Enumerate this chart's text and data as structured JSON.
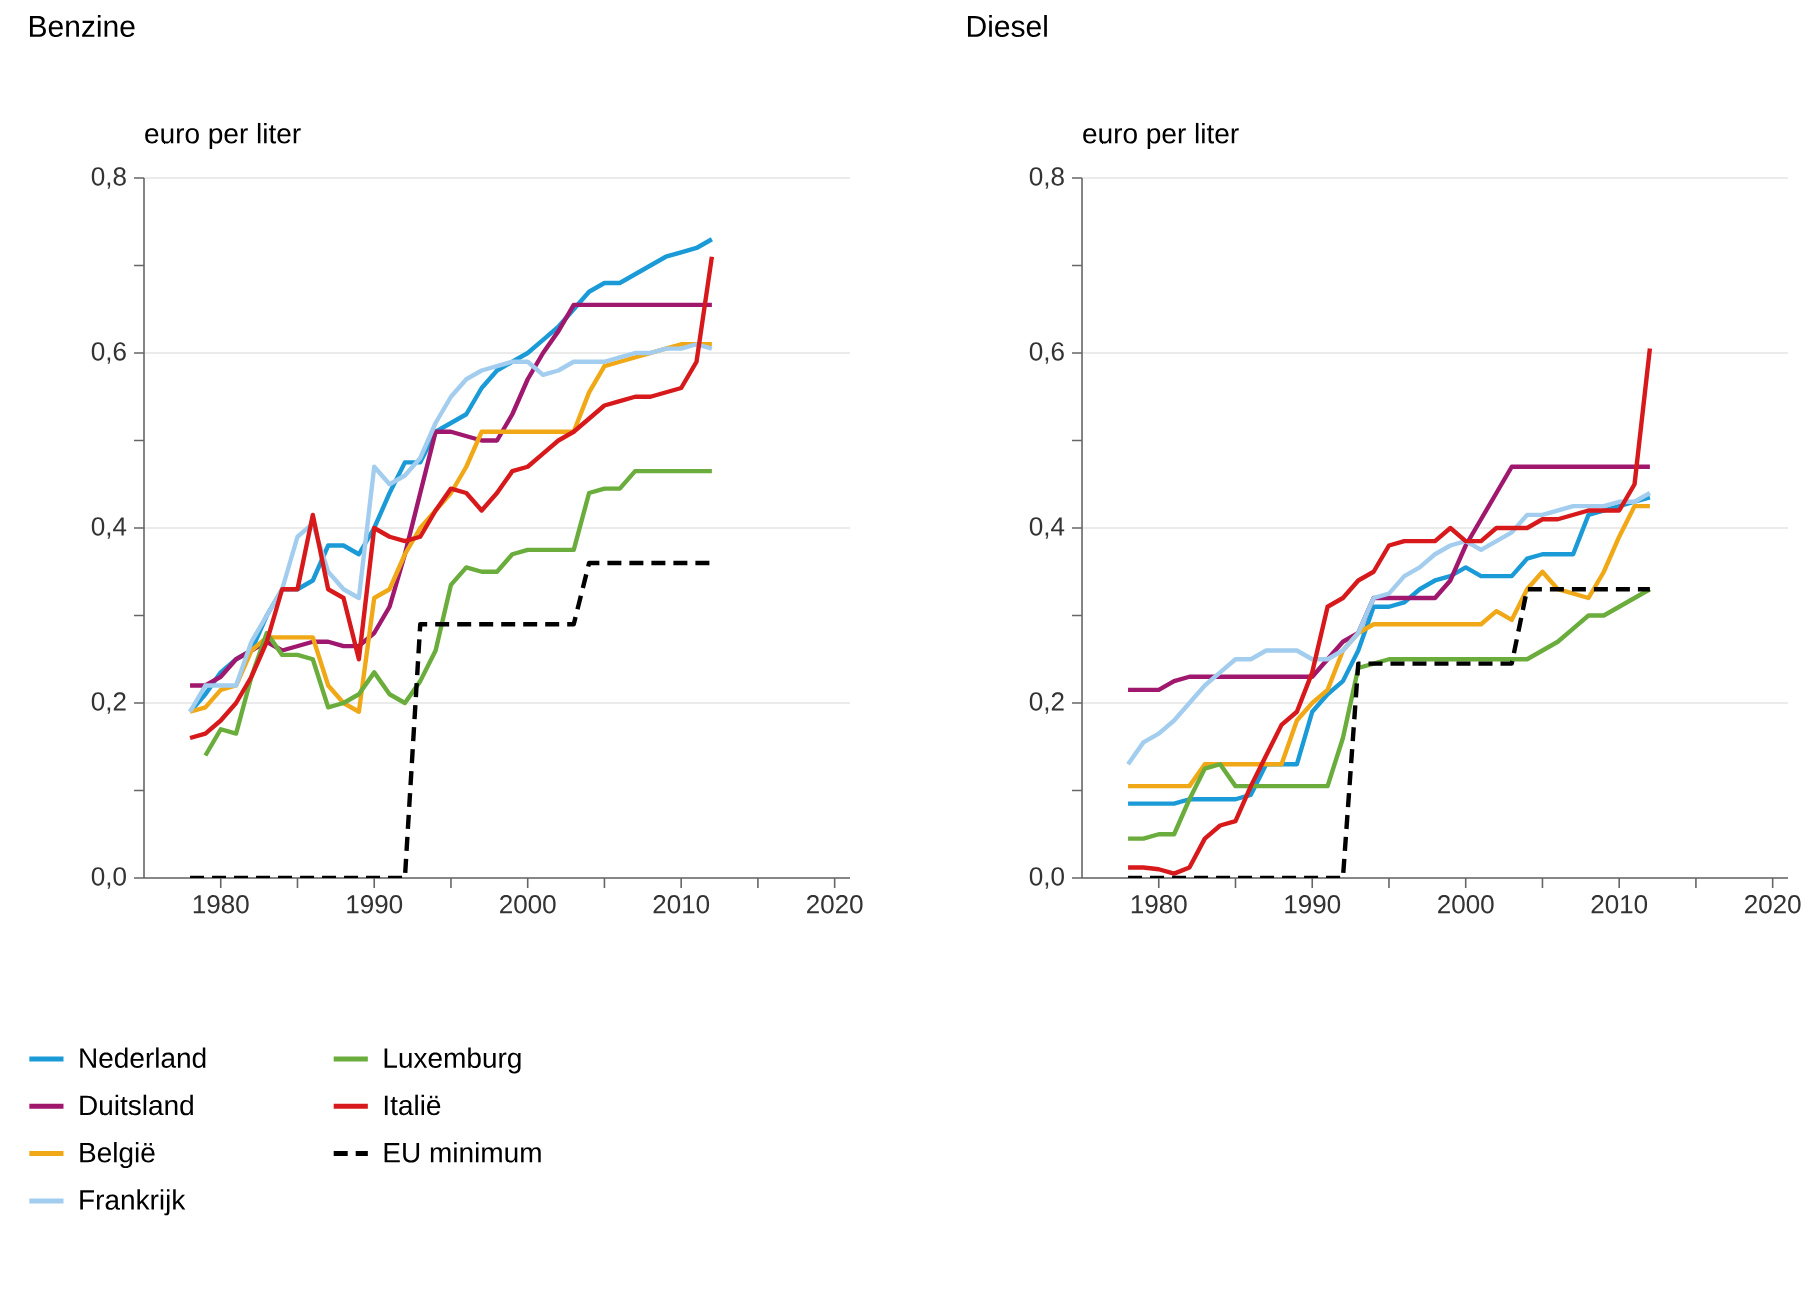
{
  "chart_data": [
    {
      "type": "line",
      "title": "Benzine",
      "ylabel": "euro per liter",
      "grid": "y",
      "legend": "bottom",
      "x": [
        1978,
        1979,
        1980,
        1981,
        1982,
        1983,
        1984,
        1985,
        1986,
        1987,
        1988,
        1989,
        1990,
        1991,
        1992,
        1993,
        1994,
        1995,
        1996,
        1997,
        1998,
        1999,
        2000,
        2001,
        2002,
        2003,
        2004,
        2005,
        2006,
        2007,
        2008,
        2009,
        2010,
        2011,
        2012
      ],
      "xlim": [
        1975,
        2021
      ],
      "ylim": [
        0,
        0.8
      ],
      "xticks": [
        1980,
        {
          "value": 1985,
          "label": null
        },
        1990,
        {
          "value": 1995,
          "label": null
        },
        2000,
        {
          "value": 2005,
          "label": null
        },
        2010,
        {
          "value": 2015,
          "label": null
        },
        2020
      ],
      "yticks": [
        {
          "value": 0,
          "label": "0,0"
        },
        {
          "value": 0.1,
          "label": null
        },
        {
          "value": 0.2,
          "label": "0,2"
        },
        {
          "value": 0.3,
          "label": null
        },
        {
          "value": 0.4,
          "label": "0,4"
        },
        {
          "value": 0.5,
          "label": null
        },
        {
          "value": 0.6,
          "label": "0,6"
        },
        {
          "value": 0.7,
          "label": null
        },
        {
          "value": 0.8,
          "label": "0,8"
        }
      ],
      "series": [
        {
          "name": "Nederland",
          "color": "#1a9bd7",
          "line_style": "solid",
          "values": [
            0.19,
            0.21,
            0.235,
            0.25,
            0.26,
            0.3,
            0.33,
            0.33,
            0.34,
            0.38,
            0.38,
            0.37,
            0.4,
            0.44,
            0.475,
            0.475,
            0.51,
            0.52,
            0.53,
            0.56,
            0.58,
            0.59,
            0.6,
            0.615,
            0.63,
            0.65,
            0.67,
            0.68,
            0.68,
            0.69,
            0.7,
            0.71,
            0.715,
            0.72,
            0.73
          ]
        },
        {
          "name": "Duitsland",
          "color": "#a0176e",
          "line_style": "solid",
          "values": [
            0.22,
            0.22,
            0.23,
            0.25,
            0.26,
            0.27,
            0.26,
            0.265,
            0.27,
            0.27,
            0.265,
            0.265,
            0.28,
            0.31,
            0.37,
            0.44,
            0.51,
            0.51,
            0.505,
            0.5,
            0.5,
            0.53,
            0.57,
            0.6,
            0.625,
            0.655,
            0.655,
            0.655,
            0.655,
            0.655,
            0.655,
            0.655,
            0.655,
            0.655,
            0.655
          ]
        },
        {
          "name": "België",
          "color": "#f0a816",
          "line_style": "solid",
          "values": [
            0.19,
            0.195,
            0.215,
            0.22,
            0.26,
            0.275,
            0.275,
            0.275,
            0.275,
            0.22,
            0.2,
            0.19,
            0.32,
            0.33,
            0.37,
            0.4,
            0.42,
            0.44,
            0.47,
            0.51,
            0.51,
            0.51,
            0.51,
            0.51,
            0.51,
            0.51,
            0.555,
            0.585,
            0.59,
            0.595,
            0.6,
            0.605,
            0.61,
            0.61,
            0.61
          ]
        },
        {
          "name": "Frankrijk",
          "color": "#a3cdee",
          "line_style": "solid",
          "values": [
            0.19,
            0.22,
            0.22,
            0.22,
            0.27,
            0.3,
            0.33,
            0.39,
            0.405,
            0.35,
            0.33,
            0.32,
            0.47,
            0.45,
            0.46,
            0.48,
            0.52,
            0.55,
            0.57,
            0.58,
            0.585,
            0.59,
            0.59,
            0.575,
            0.58,
            0.59,
            0.59,
            0.59,
            0.595,
            0.6,
            0.6,
            0.605,
            0.605,
            0.61,
            0.605
          ]
        },
        {
          "name": "Luxemburg",
          "color": "#6aad3c",
          "line_style": "solid",
          "values": [
            null,
            0.14,
            0.17,
            0.165,
            0.23,
            0.28,
            0.255,
            0.255,
            0.25,
            0.195,
            0.2,
            0.21,
            0.235,
            0.21,
            0.2,
            0.225,
            0.26,
            0.335,
            0.355,
            0.35,
            0.35,
            0.37,
            0.375,
            0.375,
            0.375,
            0.375,
            0.44,
            0.445,
            0.445,
            0.465,
            0.465,
            0.465,
            0.465,
            0.465,
            0.465
          ]
        },
        {
          "name": "Italië",
          "color": "#d7191c",
          "line_style": "solid",
          "values": [
            0.16,
            0.165,
            0.18,
            0.2,
            0.23,
            0.27,
            0.33,
            0.33,
            0.415,
            0.33,
            0.32,
            0.25,
            0.4,
            0.39,
            0.385,
            0.39,
            0.42,
            0.445,
            0.44,
            0.42,
            0.44,
            0.465,
            0.47,
            0.485,
            0.5,
            0.51,
            0.525,
            0.54,
            0.545,
            0.55,
            0.55,
            0.555,
            0.56,
            0.59,
            0.71
          ]
        },
        {
          "name": "EU minimum",
          "color": "#000000",
          "line_style": "dashed",
          "values": [
            0,
            0,
            0,
            0,
            0,
            0,
            0,
            0,
            0,
            0,
            0,
            0,
            0,
            0,
            0,
            0.29,
            0.29,
            0.29,
            0.29,
            0.29,
            0.29,
            0.29,
            0.29,
            0.29,
            0.29,
            0.29,
            0.36,
            0.36,
            0.36,
            0.36,
            0.36,
            0.36,
            0.36,
            0.36,
            0.36
          ]
        }
      ]
    },
    {
      "type": "line",
      "title": "Diesel",
      "ylabel": "euro per liter",
      "grid": "y",
      "x": [
        1978,
        1979,
        1980,
        1981,
        1982,
        1983,
        1984,
        1985,
        1986,
        1987,
        1988,
        1989,
        1990,
        1991,
        1992,
        1993,
        1994,
        1995,
        1996,
        1997,
        1998,
        1999,
        2000,
        2001,
        2002,
        2003,
        2004,
        2005,
        2006,
        2007,
        2008,
        2009,
        2010,
        2011,
        2012
      ],
      "xlim": [
        1975,
        2021
      ],
      "ylim": [
        0,
        0.8
      ],
      "xticks": [
        1980,
        {
          "value": 1985,
          "label": null
        },
        1990,
        {
          "value": 1995,
          "label": null
        },
        2000,
        {
          "value": 2005,
          "label": null
        },
        2010,
        {
          "value": 2015,
          "label": null
        },
        2020
      ],
      "yticks": [
        {
          "value": 0,
          "label": "0,0"
        },
        {
          "value": 0.1,
          "label": null
        },
        {
          "value": 0.2,
          "label": "0,2"
        },
        {
          "value": 0.3,
          "label": null
        },
        {
          "value": 0.4,
          "label": "0,4"
        },
        {
          "value": 0.5,
          "label": null
        },
        {
          "value": 0.6,
          "label": "0,6"
        },
        {
          "value": 0.7,
          "label": null
        },
        {
          "value": 0.8,
          "label": "0,8"
        }
      ],
      "series": [
        {
          "color": "#1a9bd7",
          "line_style": "solid",
          "values": [
            0.085,
            0.085,
            0.085,
            0.085,
            0.09,
            0.09,
            0.09,
            0.09,
            0.095,
            0.13,
            0.13,
            0.13,
            0.19,
            0.21,
            0.225,
            0.26,
            0.31,
            0.31,
            0.315,
            0.33,
            0.34,
            0.345,
            0.355,
            0.345,
            0.345,
            0.345,
            0.365,
            0.37,
            0.37,
            0.37,
            0.415,
            0.42,
            0.425,
            0.43,
            0.435
          ]
        },
        {
          "color": "#a0176e",
          "line_style": "solid",
          "values": [
            0.215,
            0.215,
            0.215,
            0.225,
            0.23,
            0.23,
            0.23,
            0.23,
            0.23,
            0.23,
            0.23,
            0.23,
            0.23,
            0.25,
            0.27,
            0.28,
            0.32,
            0.32,
            0.32,
            0.32,
            0.32,
            0.34,
            0.38,
            0.41,
            0.44,
            0.47,
            0.47,
            0.47,
            0.47,
            0.47,
            0.47,
            0.47,
            0.47,
            0.47,
            0.47
          ]
        },
        {
          "color": "#f0a816",
          "line_style": "solid",
          "values": [
            0.105,
            0.105,
            0.105,
            0.105,
            0.105,
            0.13,
            0.13,
            0.13,
            0.13,
            0.13,
            0.13,
            0.18,
            0.2,
            0.215,
            0.26,
            0.28,
            0.29,
            0.29,
            0.29,
            0.29,
            0.29,
            0.29,
            0.29,
            0.29,
            0.305,
            0.295,
            0.33,
            0.35,
            0.33,
            0.325,
            0.32,
            0.35,
            0.39,
            0.425,
            0.425
          ]
        },
        {
          "color": "#a3cdee",
          "line_style": "solid",
          "values": [
            0.13,
            0.155,
            0.165,
            0.18,
            0.2,
            0.22,
            0.235,
            0.25,
            0.25,
            0.26,
            0.26,
            0.26,
            0.25,
            0.25,
            0.26,
            0.28,
            0.32,
            0.325,
            0.345,
            0.355,
            0.37,
            0.38,
            0.385,
            0.375,
            0.385,
            0.395,
            0.415,
            0.415,
            0.42,
            0.425,
            0.425,
            0.425,
            0.43,
            0.43,
            0.44
          ]
        },
        {
          "color": "#6aad3c",
          "line_style": "solid",
          "values": [
            0.045,
            0.045,
            0.05,
            0.05,
            0.09,
            0.125,
            0.13,
            0.105,
            0.105,
            0.105,
            0.105,
            0.105,
            0.105,
            0.105,
            0.16,
            0.24,
            0.245,
            0.25,
            0.25,
            0.25,
            0.25,
            0.25,
            0.25,
            0.25,
            0.25,
            0.25,
            0.25,
            0.26,
            0.27,
            0.285,
            0.3,
            0.3,
            0.31,
            0.32,
            0.33
          ]
        },
        {
          "color": "#d7191c",
          "line_style": "solid",
          "values": [
            0.012,
            0.012,
            0.01,
            0.005,
            0.012,
            0.045,
            0.06,
            0.065,
            0.105,
            0.14,
            0.175,
            0.19,
            0.235,
            0.31,
            0.32,
            0.34,
            0.35,
            0.38,
            0.385,
            0.385,
            0.385,
            0.4,
            0.385,
            0.385,
            0.4,
            0.4,
            0.4,
            0.41,
            0.41,
            0.415,
            0.42,
            0.42,
            0.42,
            0.45,
            0.605
          ]
        },
        {
          "color": "#000000",
          "line_style": "dashed",
          "values": [
            0,
            0,
            0,
            0,
            0,
            0,
            0,
            0,
            0,
            0,
            0,
            0,
            0,
            0,
            0,
            0.245,
            0.245,
            0.245,
            0.245,
            0.245,
            0.245,
            0.245,
            0.245,
            0.245,
            0.245,
            0.245,
            0.33,
            0.33,
            0.33,
            0.33,
            0.33,
            0.33,
            0.33,
            0.33,
            0.33
          ]
        }
      ]
    }
  ]
}
